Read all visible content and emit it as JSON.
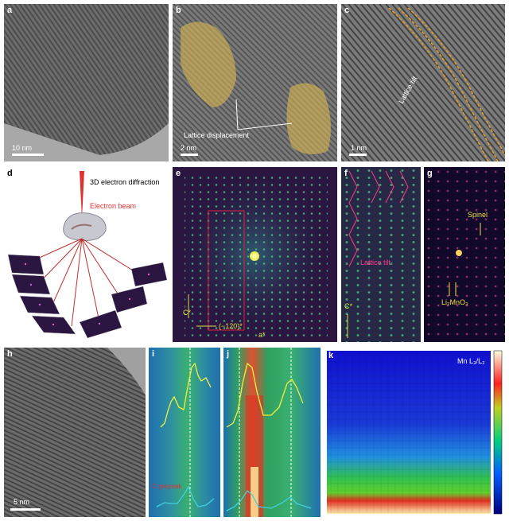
{
  "panels": {
    "a": {
      "label": "a",
      "scale": "10 nm"
    },
    "b": {
      "label": "b",
      "scale": "2 nm",
      "annotation": "Lattice displacement"
    },
    "c": {
      "label": "c",
      "scale": "1 nm",
      "annotation": "Lattice tilt"
    },
    "d": {
      "label": "d",
      "title": "3D electron diffraction",
      "beam": "Electron beam"
    },
    "e": {
      "label": "e",
      "axis_c": "C*",
      "axis_120": "(−120)*",
      "axis_a": "a*"
    },
    "f": {
      "label": "f",
      "annotation": "Lattice tilt",
      "axis_c": "C*"
    },
    "g": {
      "label": "g",
      "spinel": "Spinel",
      "li2mno3": "Li₂MnO₃"
    },
    "h": {
      "label": "h",
      "scale": "5 nm"
    },
    "i": {
      "label": "i",
      "annotation": "O prepeak"
    },
    "j": {
      "label": "j"
    },
    "k": {
      "label": "k",
      "title": "Mn L₃/L₂"
    }
  },
  "colors": {
    "overlay_yellow": "#d9b650",
    "diffraction_bg": "#2a1640",
    "accent_red": "#e03030",
    "label_yellow": "#f0e040",
    "pink": "#ff3a8a"
  }
}
